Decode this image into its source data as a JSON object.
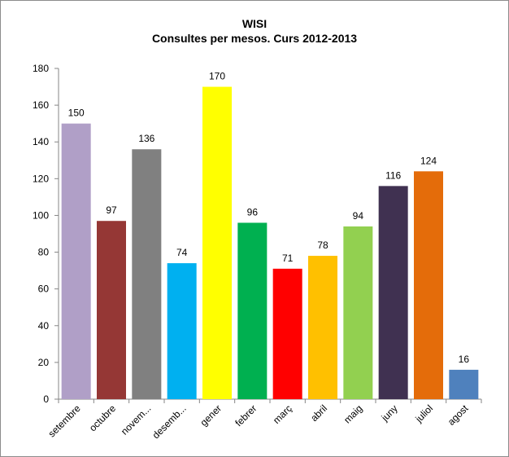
{
  "chart_data": {
    "type": "bar",
    "title": "WISI",
    "subtitle": "Consultes per mesos. Curs 2012-2013",
    "xlabel": "",
    "ylabel": "",
    "ylim": [
      0,
      180
    ],
    "yticks": [
      0,
      20,
      40,
      60,
      80,
      100,
      120,
      140,
      160,
      180
    ],
    "grid": false,
    "legend": "none",
    "categories": [
      "setembre",
      "octubre",
      "novem...",
      "desemb...",
      "gener",
      "febrer",
      "març",
      "abril",
      "maig",
      "juny",
      "juliol",
      "agost"
    ],
    "values": [
      150,
      97,
      136,
      74,
      170,
      96,
      71,
      78,
      94,
      116,
      124,
      16
    ],
    "colors": [
      "#b09fc7",
      "#953735",
      "#808080",
      "#00b0f0",
      "#ffff00",
      "#00b050",
      "#ff0000",
      "#ffc000",
      "#92d050",
      "#403151",
      "#e46c0a",
      "#4f81bd"
    ]
  }
}
